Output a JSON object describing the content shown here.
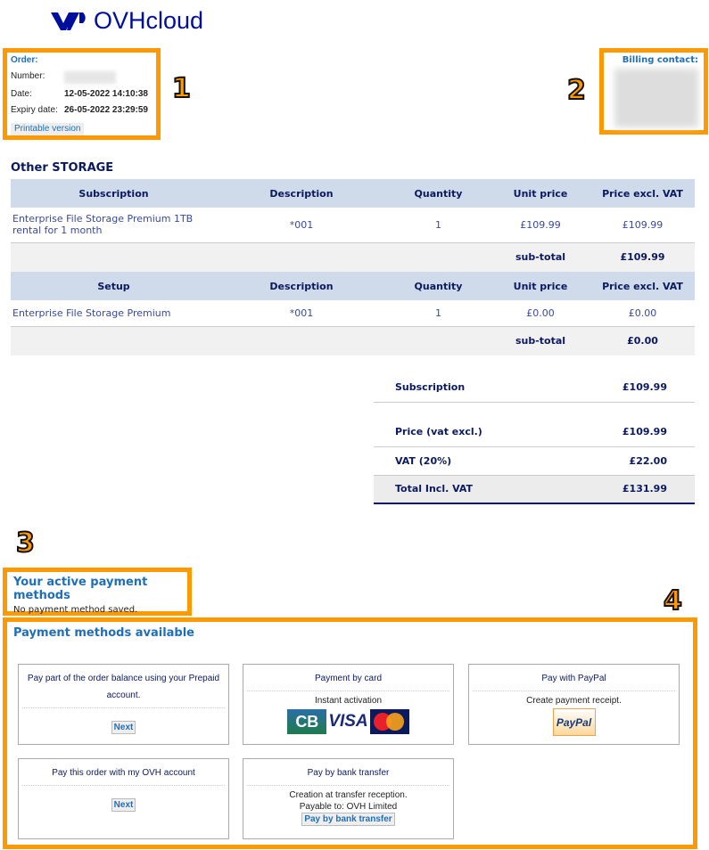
{
  "logo": {
    "text": "OVHcloud"
  },
  "order": {
    "title": "Order:",
    "number_label": "Number:",
    "date_label": "Date:",
    "date": "12-05-2022 14:10:38",
    "expiry_label": "Expiry date:",
    "expiry": "26-05-2022 23:29:59",
    "printable": "Printable version"
  },
  "billing": {
    "title": "Billing contact:"
  },
  "annotations": [
    "1",
    "2",
    "3",
    "4"
  ],
  "section_title": "Other STORAGE",
  "subscription_table": {
    "headers": [
      "Subscription",
      "Description",
      "Quantity",
      "Unit price",
      "Price excl. VAT"
    ],
    "row": [
      "Enterprise File Storage Premium 1TB rental for 1 month",
      "*001",
      "1",
      "£109.99",
      "£109.99"
    ],
    "subtotal_label": "sub-total",
    "subtotal": "£109.99"
  },
  "setup_table": {
    "headers": [
      "Setup",
      "Description",
      "Quantity",
      "Unit price",
      "Price excl. VAT"
    ],
    "row": [
      "Enterprise File Storage Premium",
      "*001",
      "1",
      "£0.00",
      "£0.00"
    ],
    "subtotal_label": "sub-total",
    "subtotal": "£0.00"
  },
  "summary": {
    "subscription_label": "Subscription",
    "subscription": "£109.99",
    "price_label": "Price (vat excl.)",
    "price": "£109.99",
    "vat_label": "VAT (20%)",
    "vat": "£22.00",
    "total_label": "Total Incl. VAT",
    "total": "£131.99"
  },
  "active_methods": {
    "title": "Your active payment methods",
    "text": "No payment method saved."
  },
  "available": {
    "title": "Payment methods available",
    "cards": [
      {
        "title": "Pay part of the order balance using your Prepaid account.",
        "button": "Next"
      },
      {
        "title": "Payment by card",
        "sub": "Instant activation",
        "logos": [
          "CB",
          "VISA",
          "MasterCard"
        ]
      },
      {
        "title": "Pay with PayPal",
        "sub": "Create payment receipt.",
        "logo": "PayPal"
      },
      {
        "title": "Pay this order with my OVH account",
        "button": "Next"
      },
      {
        "title": "Pay by bank transfer",
        "sub1": "Creation at transfer reception.",
        "sub2": "Payable to: OVH Limited",
        "button": "Pay by bank transfer"
      }
    ]
  },
  "colors": {
    "accent": "#ff9900",
    "brand": "#000e9c",
    "header_bg": "#cfdaea",
    "link": "#1f6fb8"
  }
}
